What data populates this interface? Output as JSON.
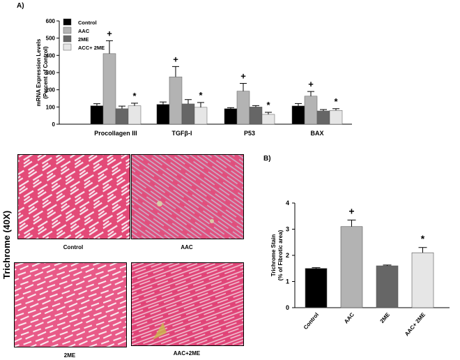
{
  "panel_a_label": "A)",
  "panel_b_label": "B)",
  "micrographs": {
    "row_label": "Trichrome (40X)",
    "captions": [
      "Control",
      "AAC",
      "2ME",
      "AAC+2ME"
    ]
  },
  "chart_data": [
    {
      "type": "bar",
      "ylabel": "mRNA Expression Levels\n(Percent of Control)",
      "ylim": [
        0,
        600
      ],
      "yticks": [
        0,
        100,
        200,
        300,
        400,
        500,
        600
      ],
      "categories": [
        "Procollagen III",
        "TGFβ-I",
        "P53",
        "BAX"
      ],
      "series": [
        {
          "name": "Control",
          "color": "#000000",
          "values": [
            107,
            115,
            90,
            106
          ],
          "errors": [
            12,
            14,
            6,
            14
          ]
        },
        {
          "name": "AAC",
          "color": "#b3b3b3",
          "values": [
            410,
            275,
            192,
            163
          ],
          "errors": [
            75,
            60,
            45,
            27
          ]
        },
        {
          "name": "2ME",
          "color": "#666666",
          "values": [
            90,
            118,
            100,
            77
          ],
          "errors": [
            15,
            25,
            8,
            8
          ]
        },
        {
          "name": "ACC+ 2ME",
          "color": "#e6e6e6",
          "values": [
            107,
            98,
            57,
            80
          ],
          "errors": [
            15,
            28,
            12,
            10
          ]
        }
      ],
      "annotations": [
        {
          "category": 0,
          "series": 1,
          "symbol": "+"
        },
        {
          "category": 0,
          "series": 3,
          "symbol": "*"
        },
        {
          "category": 1,
          "series": 1,
          "symbol": "+"
        },
        {
          "category": 1,
          "series": 3,
          "symbol": "*"
        },
        {
          "category": 2,
          "series": 1,
          "symbol": "+"
        },
        {
          "category": 2,
          "series": 3,
          "symbol": "*"
        },
        {
          "category": 3,
          "series": 1,
          "symbol": "+"
        },
        {
          "category": 3,
          "series": 3,
          "symbol": "*"
        }
      ],
      "legend_position": "top-left"
    },
    {
      "type": "bar",
      "ylabel": "Trichrome Stain\n(% of Fibrotic area)",
      "ylim": [
        0,
        4
      ],
      "yticks": [
        0,
        1,
        2,
        3,
        4
      ],
      "categories": [
        "Control",
        "AAC",
        "2ME",
        "AAC+ 2ME"
      ],
      "values": [
        1.5,
        3.1,
        1.6,
        2.1
      ],
      "errors": [
        0.03,
        0.25,
        0.03,
        0.2
      ],
      "colors": [
        "#000000",
        "#b3b3b3",
        "#666666",
        "#e6e6e6"
      ],
      "annotations": [
        {
          "index": 1,
          "symbol": "+"
        },
        {
          "index": 3,
          "symbol": "*"
        }
      ]
    }
  ]
}
